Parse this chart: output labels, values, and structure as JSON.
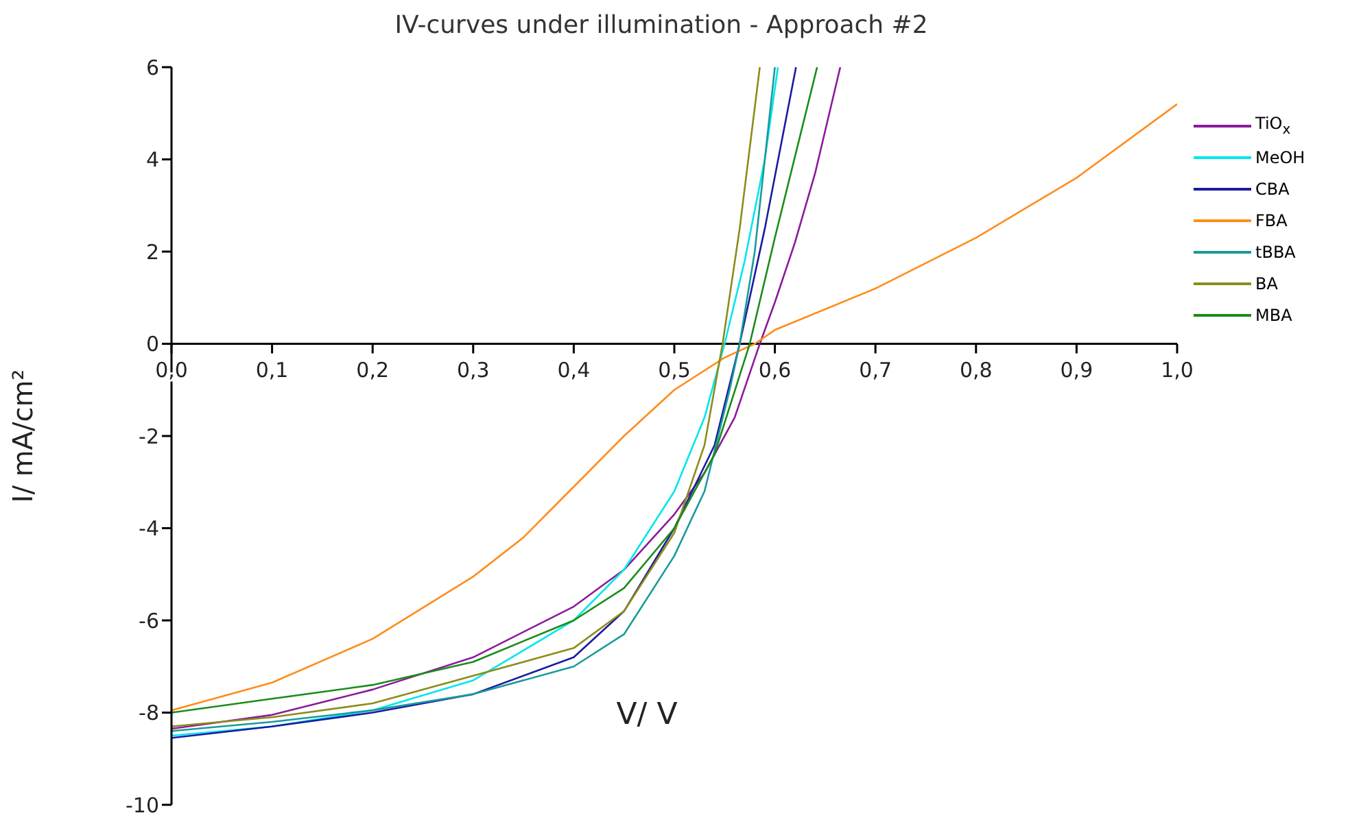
{
  "chart_data": {
    "type": "line",
    "title": "IV-curves under illumination - Approach #2",
    "xlabel": "V/ V",
    "ylabel": "I/ mA/cm²",
    "xlim": [
      0,
      1
    ],
    "ylim": [
      -10,
      6
    ],
    "xticks": [
      {
        "value": 0,
        "label": "0,0"
      },
      {
        "value": 0.1,
        "label": "0,1"
      },
      {
        "value": 0.2,
        "label": "0,2"
      },
      {
        "value": 0.3,
        "label": "0,3"
      },
      {
        "value": 0.4,
        "label": "0,4"
      },
      {
        "value": 0.5,
        "label": "0,5"
      },
      {
        "value": 0.6,
        "label": "0,6"
      },
      {
        "value": 0.7,
        "label": "0,7"
      },
      {
        "value": 0.8,
        "label": "0,8"
      },
      {
        "value": 0.9,
        "label": "0,9"
      },
      {
        "value": 1,
        "label": "1,0"
      }
    ],
    "yticks": [
      -10,
      -8,
      -6,
      -4,
      -2,
      0,
      2,
      4,
      6
    ],
    "grid": false,
    "legend": "right",
    "marker": "none",
    "line_style": "solid",
    "series": [
      {
        "name": "TiO$_{x}$",
        "color": "#8b1a9b",
        "x": [
          0,
          0.1,
          0.2,
          0.3,
          0.4,
          0.45,
          0.5,
          0.53,
          0.56,
          0.585,
          0.6,
          0.62,
          0.64,
          0.665
        ],
        "values": [
          -8.35,
          -8.05,
          -7.5,
          -6.8,
          -5.7,
          -4.9,
          -3.7,
          -2.8,
          -1.6,
          0,
          0.9,
          2.2,
          3.7,
          6
        ]
      },
      {
        "name": "MeOH",
        "color": "#00e5ee",
        "x": [
          0,
          0.1,
          0.2,
          0.3,
          0.4,
          0.45,
          0.5,
          0.53,
          0.55,
          0.57,
          0.59,
          0.603
        ],
        "values": [
          -8.5,
          -8.3,
          -7.95,
          -7.3,
          -6,
          -4.9,
          -3.2,
          -1.6,
          0,
          1.8,
          4,
          6
        ]
      },
      {
        "name": "CBA",
        "color": "#1a1aa0",
        "x": [
          0,
          0.1,
          0.2,
          0.3,
          0.4,
          0.45,
          0.5,
          0.54,
          0.565,
          0.59,
          0.621
        ],
        "values": [
          -8.55,
          -8.3,
          -8,
          -7.6,
          -6.8,
          -5.8,
          -4,
          -2.2,
          0,
          2.5,
          6
        ]
      },
      {
        "name": "FBA",
        "color": "#ff8c1a",
        "x": [
          0,
          0.1,
          0.2,
          0.3,
          0.35,
          0.4,
          0.45,
          0.5,
          0.55,
          0.58,
          0.6,
          0.7,
          0.8,
          0.9,
          1
        ],
        "values": [
          -7.95,
          -7.35,
          -6.4,
          -5.05,
          -4.2,
          -3.1,
          -2,
          -1,
          -0.3,
          0,
          0.3,
          1.2,
          2.3,
          3.6,
          5.2
        ]
      },
      {
        "name": "tBBA",
        "color": "#1a9a9a",
        "x": [
          0,
          0.1,
          0.2,
          0.3,
          0.4,
          0.45,
          0.5,
          0.53,
          0.555,
          0.565,
          0.58,
          0.6
        ],
        "values": [
          -8.4,
          -8.2,
          -7.95,
          -7.6,
          -7,
          -6.3,
          -4.6,
          -3.2,
          -1,
          0,
          2,
          6
        ]
      },
      {
        "name": "BA",
        "color": "#8c8c1a",
        "x": [
          0,
          0.1,
          0.2,
          0.3,
          0.4,
          0.45,
          0.5,
          0.53,
          0.548,
          0.565,
          0.585
        ],
        "values": [
          -8.3,
          -8.1,
          -7.8,
          -7.2,
          -6.6,
          -5.8,
          -4.1,
          -2.2,
          0,
          2.5,
          6
        ]
      },
      {
        "name": "MBA",
        "color": "#1a8c1a",
        "x": [
          0,
          0.1,
          0.2,
          0.3,
          0.4,
          0.45,
          0.5,
          0.54,
          0.575,
          0.6,
          0.642
        ],
        "values": [
          -8,
          -7.7,
          -7.4,
          -6.9,
          -6,
          -5.3,
          -4,
          -2.4,
          0,
          2.3,
          6
        ]
      }
    ]
  }
}
